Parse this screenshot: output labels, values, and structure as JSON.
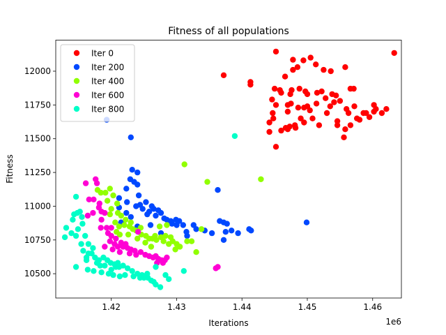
{
  "chart_data": {
    "type": "scatter",
    "title": "Fitness of all populations",
    "xlabel": "Iterations",
    "ylabel": "Fitness",
    "x_offset_label": "1e6",
    "xlim": [
      1.4115,
      1.4644
    ],
    "ylim": [
      10320,
      12230
    ],
    "xticks": [
      1.42,
      1.43,
      1.44,
      1.45,
      1.46
    ],
    "xtick_labels": [
      "1.42",
      "1.43",
      "1.44",
      "1.45",
      "1.46"
    ],
    "yticks": [
      10500,
      10750,
      11000,
      11250,
      11500,
      11750,
      12000
    ],
    "ytick_labels": [
      "10500",
      "10750",
      "11000",
      "11250",
      "11500",
      "11750",
      "12000"
    ],
    "grid": false,
    "legend_position": "top-left",
    "series": [
      {
        "name": "Iter 0",
        "color": "#ff0000",
        "points": [
          [
            1.4372,
            11970
          ],
          [
            1.4413,
            11900
          ],
          [
            1.4413,
            11920
          ],
          [
            1.4452,
            12145
          ],
          [
            1.4633,
            12135
          ],
          [
            1.4478,
            12085
          ],
          [
            1.4494,
            12080
          ],
          [
            1.4505,
            12100
          ],
          [
            1.4485,
            12030
          ],
          [
            1.4478,
            12010
          ],
          [
            1.4513,
            12050
          ],
          [
            1.4525,
            12010
          ],
          [
            1.4536,
            12000
          ],
          [
            1.4558,
            12030
          ],
          [
            1.4466,
            11960
          ],
          [
            1.4476,
            11860
          ],
          [
            1.4488,
            11870
          ],
          [
            1.4474,
            11830
          ],
          [
            1.4458,
            11860
          ],
          [
            1.445,
            11870
          ],
          [
            1.446,
            11840
          ],
          [
            1.4497,
            11850
          ],
          [
            1.45,
            11830
          ],
          [
            1.4515,
            11840
          ],
          [
            1.4522,
            11850
          ],
          [
            1.4538,
            11830
          ],
          [
            1.4544,
            11820
          ],
          [
            1.4566,
            11870
          ],
          [
            1.4571,
            11870
          ],
          [
            1.455,
            11780
          ],
          [
            1.4446,
            11790
          ],
          [
            1.4452,
            11750
          ],
          [
            1.447,
            11750
          ],
          [
            1.4475,
            11760
          ],
          [
            1.4486,
            11730
          ],
          [
            1.4495,
            11730
          ],
          [
            1.45,
            11740
          ],
          [
            1.4504,
            11710
          ],
          [
            1.4514,
            11760
          ],
          [
            1.4535,
            11740
          ],
          [
            1.4541,
            11770
          ],
          [
            1.456,
            11720
          ],
          [
            1.4572,
            11740
          ],
          [
            1.4563,
            11690
          ],
          [
            1.4586,
            11690
          ],
          [
            1.459,
            11690
          ],
          [
            1.4602,
            11700
          ],
          [
            1.4605,
            11720
          ],
          [
            1.4614,
            11690
          ],
          [
            1.4602,
            11750
          ],
          [
            1.4621,
            11720
          ],
          [
            1.4447,
            11690
          ],
          [
            1.4448,
            11650
          ],
          [
            1.4442,
            11620
          ],
          [
            1.446,
            11560
          ],
          [
            1.4467,
            11580
          ],
          [
            1.447,
            11570
          ],
          [
            1.4473,
            11590
          ],
          [
            1.4481,
            11600
          ],
          [
            1.4495,
            11620
          ],
          [
            1.4508,
            11650
          ],
          [
            1.453,
            11690
          ],
          [
            1.4546,
            11630
          ],
          [
            1.4546,
            11600
          ],
          [
            1.4558,
            11570
          ],
          [
            1.4566,
            11600
          ],
          [
            1.458,
            11640
          ],
          [
            1.4576,
            11650
          ],
          [
            1.4556,
            11510
          ],
          [
            1.4442,
            11550
          ],
          [
            1.4452,
            11440
          ],
          [
            1.4482,
            11580
          ],
          [
            1.449,
            11650
          ],
          [
            1.4518,
            11600
          ],
          [
            1.4528,
            11800
          ],
          [
            1.4595,
            11660
          ],
          [
            1.447,
            11700
          ]
        ]
      },
      {
        "name": "Iter 200",
        "color": "#0048ff",
        "points": [
          [
            1.4193,
            11640
          ],
          [
            1.423,
            11510
          ],
          [
            1.4229,
            11200
          ],
          [
            1.4232,
            11270
          ],
          [
            1.424,
            11250
          ],
          [
            1.4235,
            11180
          ],
          [
            1.424,
            11160
          ],
          [
            1.4242,
            11080
          ],
          [
            1.4223,
            11130
          ],
          [
            1.4212,
            11060
          ],
          [
            1.4224,
            11030
          ],
          [
            1.4238,
            11000
          ],
          [
            1.4244,
            11010
          ],
          [
            1.4253,
            11030
          ],
          [
            1.4262,
            11000
          ],
          [
            1.4265,
            10980
          ],
          [
            1.4272,
            10970
          ],
          [
            1.4276,
            10950
          ],
          [
            1.4281,
            10910
          ],
          [
            1.4285,
            10900
          ],
          [
            1.4291,
            10890
          ],
          [
            1.4299,
            10900
          ],
          [
            1.4304,
            10890
          ],
          [
            1.4315,
            10810
          ],
          [
            1.4316,
            10780
          ],
          [
            1.4326,
            10860
          ],
          [
            1.4343,
            10820
          ],
          [
            1.4363,
            11120
          ],
          [
            1.4366,
            10890
          ],
          [
            1.4372,
            10880
          ],
          [
            1.4377,
            10870
          ],
          [
            1.4375,
            10810
          ],
          [
            1.4384,
            10820
          ],
          [
            1.4394,
            10800
          ],
          [
            1.4411,
            10830
          ],
          [
            1.4414,
            10820
          ],
          [
            1.4372,
            10750
          ],
          [
            1.4499,
            10880
          ],
          [
            1.4212,
            10990
          ],
          [
            1.4223,
            10950
          ],
          [
            1.423,
            10920
          ],
          [
            1.4248,
            10980
          ],
          [
            1.4255,
            10940
          ],
          [
            1.4258,
            10960
          ],
          [
            1.4268,
            10930
          ],
          [
            1.4293,
            10870
          ],
          [
            1.43,
            10860
          ],
          [
            1.431,
            10860
          ],
          [
            1.4276,
            10800
          ],
          [
            1.424,
            10850
          ],
          [
            1.4215,
            10880
          ],
          [
            1.426,
            10860
          ],
          [
            1.433,
            10830
          ],
          [
            1.4354,
            10800
          ]
        ]
      },
      {
        "name": "Iter 400",
        "color": "#91ff00",
        "points": [
          [
            1.4312,
            11310
          ],
          [
            1.4347,
            11180
          ],
          [
            1.4429,
            11200
          ],
          [
            1.4179,
            11120
          ],
          [
            1.4191,
            11100
          ],
          [
            1.4198,
            11130
          ],
          [
            1.4184,
            11100
          ],
          [
            1.4203,
            11080
          ],
          [
            1.4194,
            11040
          ],
          [
            1.4209,
            11020
          ],
          [
            1.42,
            10980
          ],
          [
            1.421,
            10950
          ],
          [
            1.4215,
            10930
          ],
          [
            1.4206,
            10880
          ],
          [
            1.4212,
            10850
          ],
          [
            1.422,
            10860
          ],
          [
            1.4228,
            10850
          ],
          [
            1.4233,
            10830
          ],
          [
            1.4238,
            10820
          ],
          [
            1.4246,
            10790
          ],
          [
            1.4253,
            10780
          ],
          [
            1.4258,
            10760
          ],
          [
            1.4263,
            10760
          ],
          [
            1.4269,
            10750
          ],
          [
            1.4276,
            10770
          ],
          [
            1.4283,
            10780
          ],
          [
            1.4291,
            10770
          ],
          [
            1.4294,
            10740
          ],
          [
            1.43,
            10720
          ],
          [
            1.4305,
            10700
          ],
          [
            1.4316,
            10740
          ],
          [
            1.4323,
            10740
          ],
          [
            1.433,
            10660
          ],
          [
            1.4338,
            10830
          ],
          [
            1.4267,
            10780
          ],
          [
            1.428,
            10740
          ],
          [
            1.4288,
            10720
          ],
          [
            1.4298,
            10680
          ],
          [
            1.4274,
            10850
          ],
          [
            1.4285,
            10860
          ],
          [
            1.4222,
            10900
          ],
          [
            1.4226,
            10790
          ],
          [
            1.4213,
            10790
          ],
          [
            1.4208,
            10810
          ],
          [
            1.424,
            10760
          ],
          [
            1.4252,
            10730
          ],
          [
            1.4261,
            10700
          ],
          [
            1.423,
            10880
          ],
          [
            1.4245,
            10840
          ],
          [
            1.4198,
            10940
          ]
        ]
      },
      {
        "name": "Iter 600",
        "color": "#ff00d4",
        "points": [
          [
            1.4161,
            11170
          ],
          [
            1.4176,
            11200
          ],
          [
            1.4178,
            11170
          ],
          [
            1.4166,
            11050
          ],
          [
            1.4173,
            11050
          ],
          [
            1.4182,
            11020
          ],
          [
            1.4181,
            10990
          ],
          [
            1.4185,
            10960
          ],
          [
            1.419,
            10950
          ],
          [
            1.4172,
            10950
          ],
          [
            1.4164,
            10930
          ],
          [
            1.4185,
            10900
          ],
          [
            1.4193,
            10840
          ],
          [
            1.4184,
            10840
          ],
          [
            1.42,
            10840
          ],
          [
            1.4195,
            10800
          ],
          [
            1.42,
            10780
          ],
          [
            1.4207,
            10760
          ],
          [
            1.4198,
            10740
          ],
          [
            1.419,
            10700
          ],
          [
            1.421,
            10700
          ],
          [
            1.4218,
            10700
          ],
          [
            1.4225,
            10690
          ],
          [
            1.423,
            10680
          ],
          [
            1.4236,
            10670
          ],
          [
            1.4245,
            10660
          ],
          [
            1.4252,
            10640
          ],
          [
            1.4258,
            10630
          ],
          [
            1.4264,
            10620
          ],
          [
            1.4268,
            10630
          ],
          [
            1.4272,
            10610
          ],
          [
            1.4277,
            10600
          ],
          [
            1.4282,
            10600
          ],
          [
            1.4285,
            10620
          ],
          [
            1.4241,
            10810
          ],
          [
            1.436,
            10540
          ],
          [
            1.4363,
            10550
          ],
          [
            1.4205,
            10720
          ],
          [
            1.4215,
            10730
          ],
          [
            1.4222,
            10720
          ],
          [
            1.4202,
            10680
          ],
          [
            1.4213,
            10660
          ],
          [
            1.4228,
            10650
          ],
          [
            1.4238,
            10640
          ],
          [
            1.427,
            10580
          ],
          [
            1.4279,
            10580
          ]
        ]
      },
      {
        "name": "Iter 800",
        "color": "#00ffc8",
        "points": [
          [
            1.4389,
            11520
          ],
          [
            1.4146,
            11070
          ],
          [
            1.4148,
            10950
          ],
          [
            1.4152,
            10960
          ],
          [
            1.4155,
            10920
          ],
          [
            1.4143,
            10940
          ],
          [
            1.4141,
            10900
          ],
          [
            1.4156,
            10870
          ],
          [
            1.4149,
            10830
          ],
          [
            1.4131,
            10840
          ],
          [
            1.4139,
            10800
          ],
          [
            1.4146,
            10780
          ],
          [
            1.4129,
            10770
          ],
          [
            1.416,
            10780
          ],
          [
            1.4154,
            10720
          ],
          [
            1.4165,
            10720
          ],
          [
            1.4157,
            10670
          ],
          [
            1.4165,
            10650
          ],
          [
            1.4162,
            10620
          ],
          [
            1.417,
            10650
          ],
          [
            1.4175,
            10620
          ],
          [
            1.4181,
            10600
          ],
          [
            1.4188,
            10620
          ],
          [
            1.4194,
            10600
          ],
          [
            1.4199,
            10580
          ],
          [
            1.4205,
            10570
          ],
          [
            1.4207,
            10550
          ],
          [
            1.4212,
            10550
          ],
          [
            1.4218,
            10560
          ],
          [
            1.4225,
            10540
          ],
          [
            1.4232,
            10520
          ],
          [
            1.424,
            10500
          ],
          [
            1.4247,
            10490
          ],
          [
            1.425,
            10470
          ],
          [
            1.4256,
            10470
          ],
          [
            1.4261,
            10450
          ],
          [
            1.4268,
            10420
          ],
          [
            1.4275,
            10400
          ],
          [
            1.4283,
            10490
          ],
          [
            1.4288,
            10460
          ],
          [
            1.4311,
            10520
          ],
          [
            1.4146,
            10550
          ],
          [
            1.4164,
            10530
          ],
          [
            1.4173,
            10520
          ],
          [
            1.4185,
            10510
          ],
          [
            1.4196,
            10500
          ],
          [
            1.4203,
            10490
          ],
          [
            1.4213,
            10480
          ],
          [
            1.4221,
            10490
          ],
          [
            1.4234,
            10480
          ],
          [
            1.4244,
            10470
          ],
          [
            1.4255,
            10500
          ],
          [
            1.4265,
            10440
          ],
          [
            1.4268,
            10550
          ],
          [
            1.42,
            10530
          ],
          [
            1.419,
            10560
          ],
          [
            1.421,
            10580
          ],
          [
            1.4178,
            10580
          ],
          [
            1.4183,
            10560
          ],
          [
            1.4162,
            10600
          ],
          [
            1.4172,
            10690
          ]
        ]
      }
    ]
  }
}
